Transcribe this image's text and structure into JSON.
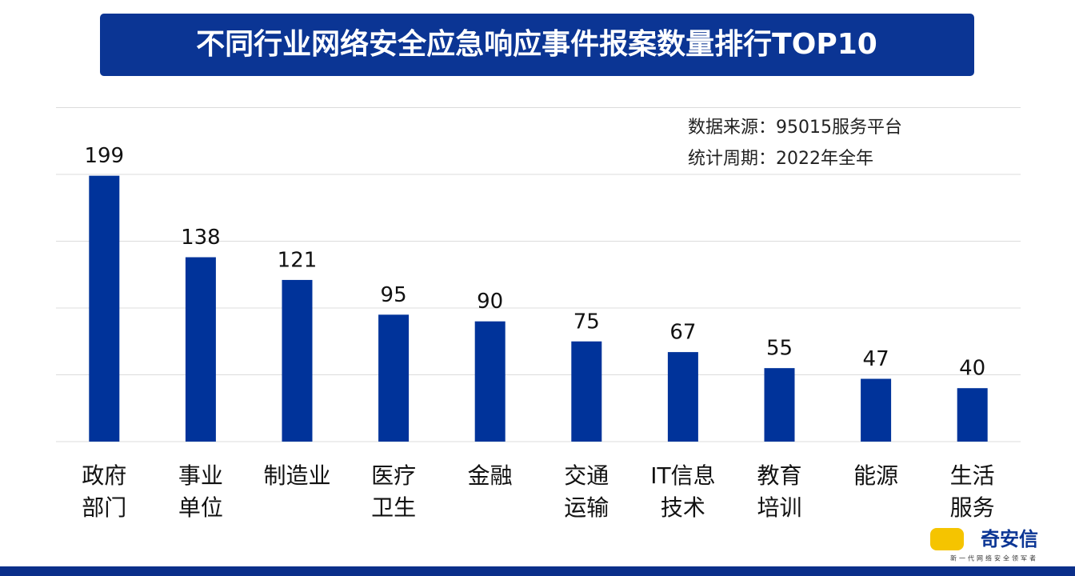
{
  "chart_data": {
    "type": "bar",
    "title": "不同行业网络安全应急响应事件报案数量排行TOP10",
    "annotations": [
      "数据来源：95015服务平台",
      "统计周期：2022年全年"
    ],
    "categories": [
      "政府\n部门",
      "事业\n单位",
      "制造业",
      "医疗\n卫生",
      "金融",
      "交通\n运输",
      "IT信息\n技术",
      "教育\n培训",
      "能源",
      "生活\n服务"
    ],
    "values": [
      199,
      138,
      121,
      95,
      90,
      75,
      67,
      55,
      47,
      40
    ],
    "color": "#00339a",
    "ylim": [
      0,
      250
    ],
    "yticks": [
      0,
      50,
      100,
      150,
      200,
      250
    ],
    "grid": true
  },
  "logo": {
    "name": "奇安信",
    "tagline": "新一代网络安全领军者"
  }
}
